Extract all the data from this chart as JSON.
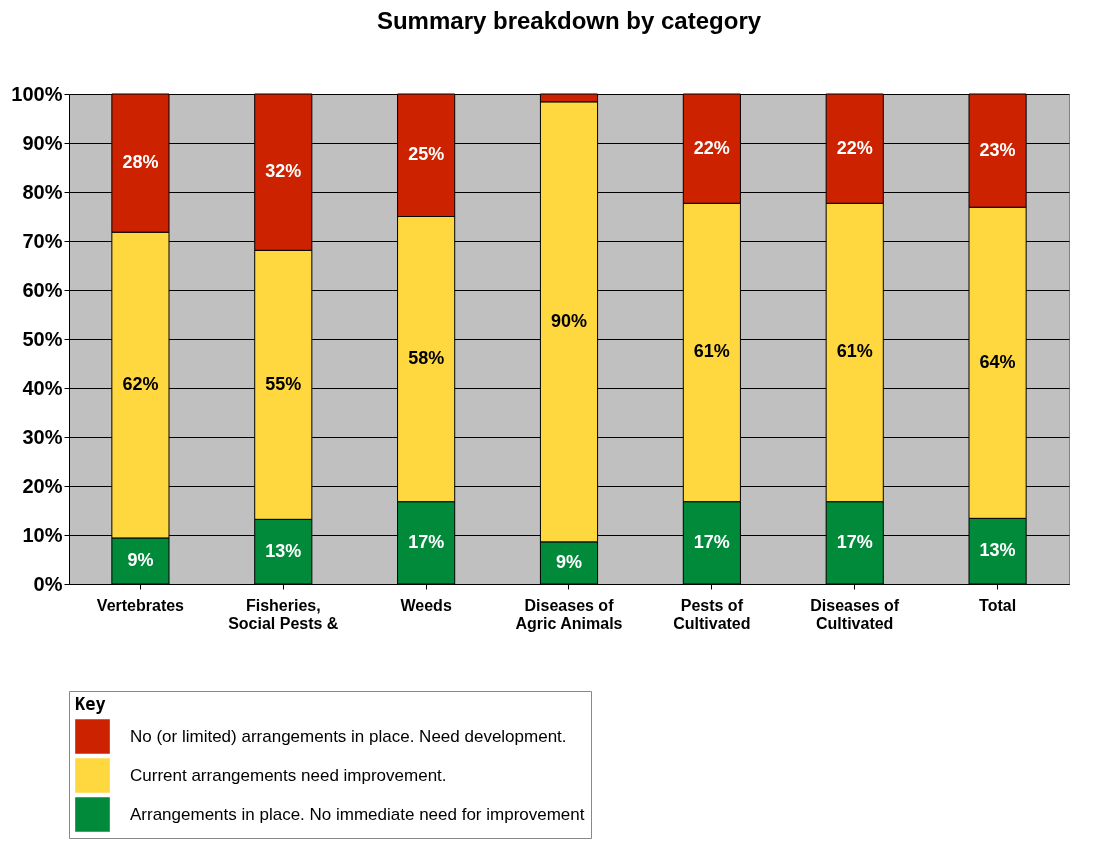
{
  "chart_data": {
    "type": "bar",
    "title": "Summary breakdown by category",
    "stacked": true,
    "categories": [
      "Vertebrates",
      "Fisheries, Social Pests &",
      "Weeds",
      "Diseases of Agric Animals",
      "Pests of Cultivated",
      "Diseases of Cultivated",
      "Total"
    ],
    "series": [
      {
        "name": "Arrangements in place. No immediate need for improvement",
        "color": "#008a3a",
        "values": [
          9.4,
          13.2,
          16.8,
          8.6,
          16.8,
          16.8,
          13.4
        ],
        "value_labels": [
          "9%",
          "13%",
          "17%",
          "9%",
          "17%",
          "17%",
          "13%"
        ]
      },
      {
        "name": "Current arrangements need improvement.",
        "color": "#ffd840",
        "values": [
          62.4,
          54.9,
          58.2,
          89.8,
          60.9,
          60.9,
          63.5
        ],
        "value_labels": [
          "62%",
          "55%",
          "58%",
          "90%",
          "61%",
          "61%",
          "64%"
        ]
      },
      {
        "name": "No (or limited) arrangements in place. Need development.",
        "color": "#cc2200",
        "values": [
          28.2,
          31.9,
          25,
          1.6,
          22.3,
          22.3,
          23.1
        ],
        "value_labels": [
          "28%",
          "32%",
          "25%",
          null,
          "22%",
          "22%",
          "23%"
        ]
      }
    ],
    "legend_title": "Key",
    "legend": "bottom",
    "ylim": [
      0,
      100
    ],
    "yticks": [
      {
        "value": 0,
        "label": "0%"
      },
      {
        "value": 10,
        "label": "10%"
      },
      {
        "value": 20,
        "label": "20%"
      },
      {
        "value": 30,
        "label": "30%"
      },
      {
        "value": 40,
        "label": "40%"
      },
      {
        "value": 50,
        "label": "50%"
      },
      {
        "value": 60,
        "label": "60%"
      },
      {
        "value": 70,
        "label": "70%"
      },
      {
        "value": 80,
        "label": "80%"
      },
      {
        "value": 90,
        "label": "90%"
      },
      {
        "value": 100,
        "label": "100%"
      }
    ],
    "grid": "y"
  }
}
